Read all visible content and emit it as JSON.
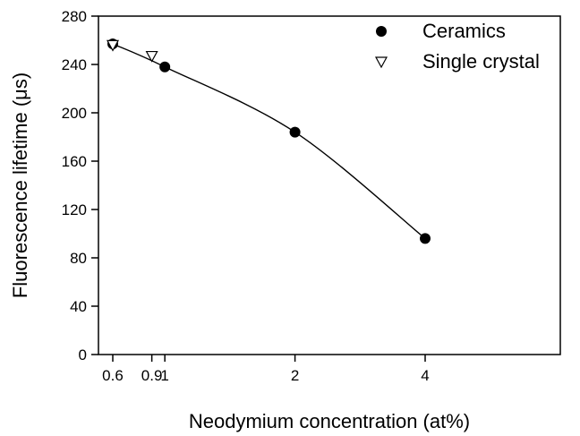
{
  "chart_data": {
    "type": "scatter",
    "title": "",
    "xlabel": "Neodymium concentration (at%)",
    "ylabel": "Fluorescence lifetime (μs)",
    "ylim": [
      0,
      280
    ],
    "yticks": [
      0,
      40,
      80,
      120,
      160,
      200,
      240,
      280
    ],
    "xticks": [
      {
        "value": 0.6,
        "label": "0.6"
      },
      {
        "value": 0.9,
        "label": "0.9"
      },
      {
        "value": 1.0,
        "label": "1"
      },
      {
        "value": 2.0,
        "label": "2"
      },
      {
        "value": 4.0,
        "label": "4"
      }
    ],
    "x_axis_positions": [
      {
        "value": 0.6,
        "pos": 0.6
      },
      {
        "value": 0.9,
        "pos": 0.9
      },
      {
        "value": 1.0,
        "pos": 1.0
      },
      {
        "value": 2.0,
        "pos": 2.0
      },
      {
        "value": 4.0,
        "pos": 3.0
      }
    ],
    "grid": false,
    "legend_position": "top-right",
    "series": [
      {
        "name": "Ceramics",
        "marker": "filled-circle",
        "points": [
          {
            "x": 0.6,
            "y": 257
          },
          {
            "x": 1.0,
            "y": 238
          },
          {
            "x": 2.0,
            "y": 184
          },
          {
            "x": 4.0,
            "y": 96
          }
        ]
      },
      {
        "name": "Single crystal",
        "marker": "open-down-triangle",
        "points": [
          {
            "x": 0.6,
            "y": 256
          },
          {
            "x": 0.9,
            "y": 247
          }
        ]
      }
    ],
    "fit_curve": {
      "style": "smooth-line",
      "points": [
        {
          "x": 0.6,
          "y": 257
        },
        {
          "x": 1.0,
          "y": 238
        },
        {
          "x": 2.0,
          "y": 184
        },
        {
          "x": 4.0,
          "y": 96
        }
      ]
    }
  }
}
